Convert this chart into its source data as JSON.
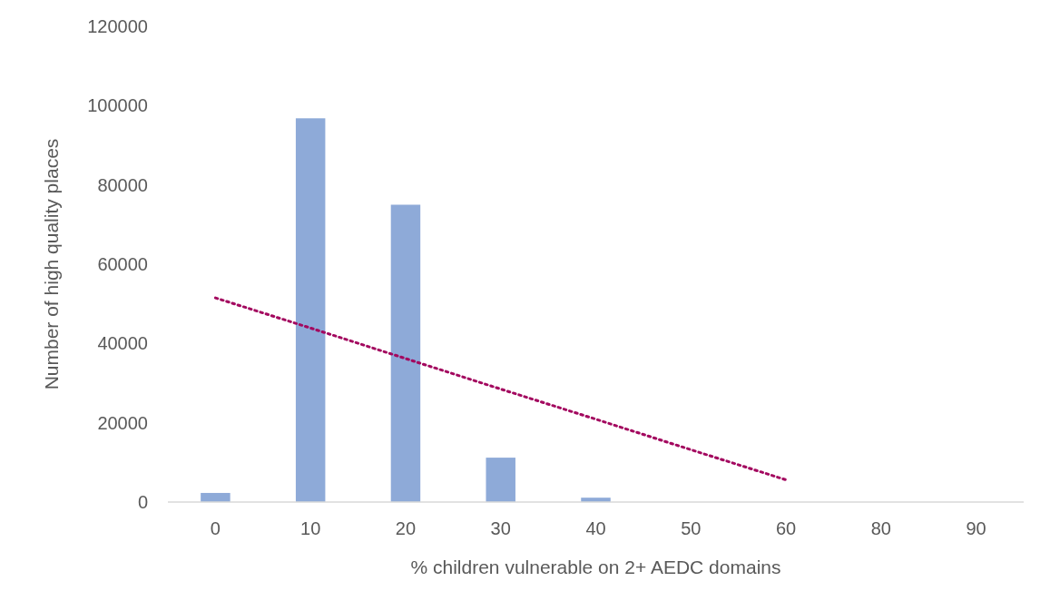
{
  "chart_data": {
    "type": "bar",
    "xlabel": "% children vulnerable on 2+ AEDC domains",
    "ylabel": "Number of high quality places",
    "categories": [
      "0",
      "10",
      "20",
      "30",
      "40",
      "50",
      "60",
      "80",
      "90"
    ],
    "series": [
      {
        "color": "#8eaad8",
        "values": [
          2300,
          96800,
          75000,
          11200,
          1100,
          0,
          0,
          0,
          0
        ]
      },
      {
        "type": "line",
        "color": "#a3085f",
        "line_style": "dotted",
        "marker": "none",
        "values": [
          51500,
          43900,
          36200,
          28500,
          20900,
          13200,
          5600,
          null,
          null
        ]
      }
    ],
    "ylim": [
      0,
      120000
    ],
    "yticks": [
      0,
      20000,
      40000,
      60000,
      80000,
      100000,
      120000
    ],
    "grid": false
  }
}
